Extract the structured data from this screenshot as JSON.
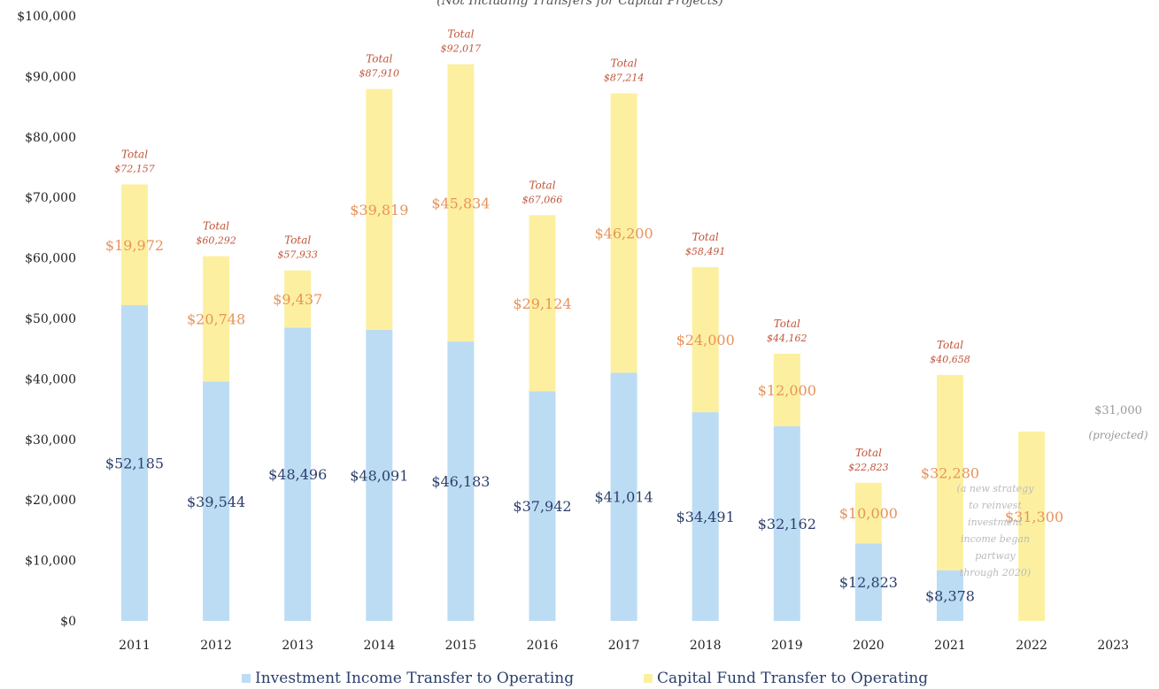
{
  "chart_data": {
    "type": "bar",
    "stacked": true,
    "title": "(Not Including Transfers for Capital Projects)",
    "categories": [
      "2011",
      "2012",
      "2013",
      "2014",
      "2015",
      "2016",
      "2017",
      "2018",
      "2019",
      "2020",
      "2021",
      "2022",
      "2023"
    ],
    "series": [
      {
        "name": "Investment Income Transfer to Operating",
        "color": "#bcdcf3",
        "values": [
          52185,
          39544,
          48496,
          48091,
          46183,
          37942,
          41014,
          34491,
          32162,
          12823,
          8378,
          0,
          0
        ],
        "labels": [
          "$52,185",
          "$39,544",
          "$48,496",
          "$48,091",
          "$46,183",
          "$37,942",
          "$41,014",
          "$34,491",
          "$32,162",
          "$12,823",
          "$8,378",
          "",
          ""
        ]
      },
      {
        "name": "Capital Fund Transfer to Operating",
        "color": "#fcf0a0",
        "values": [
          19972,
          20748,
          9437,
          39819,
          45834,
          29124,
          46200,
          24000,
          12000,
          10000,
          32280,
          31300,
          0
        ],
        "labels": [
          "$19,972",
          "$20,748",
          "$9,437",
          "$39,819",
          "$45,834",
          "$29,124",
          "$46,200",
          "$24,000",
          "$12,000",
          "$10,000",
          "$32,280",
          "$31,300",
          ""
        ]
      }
    ],
    "total_caption": "Total",
    "totals": [
      "$72,157",
      "$60,292",
      "$57,933",
      "$87,910",
      "$92,017",
      "$67,066",
      "$87,214",
      "$58,491",
      "$44,162",
      "$22,823",
      "$40,658",
      "",
      ""
    ],
    "yticks": [
      "$100,000",
      "$90,000",
      "$80,000",
      "$70,000",
      "$60,000",
      "$50,000",
      "$40,000",
      "$30,000",
      "$20,000",
      "$10,000",
      "$0"
    ],
    "ylim": [
      0,
      100000
    ],
    "xlabel": "",
    "ylabel": "",
    "grid": false,
    "legend_position": "bottom",
    "projection_labels": [
      "$31,000",
      "(projected)"
    ],
    "annotation_lines": [
      "(a new strategy",
      "to reinvest",
      "investment",
      "income began",
      "partway",
      "through 2020)"
    ],
    "colors": {
      "investment": "#bcdcf3",
      "capital": "#fcf0a0",
      "investment_label": "#2b3f6b",
      "capital_label": "#e8935a",
      "total_label": "#c0553a",
      "projection": "#9a9a9a",
      "axis_text": "#222222"
    }
  }
}
